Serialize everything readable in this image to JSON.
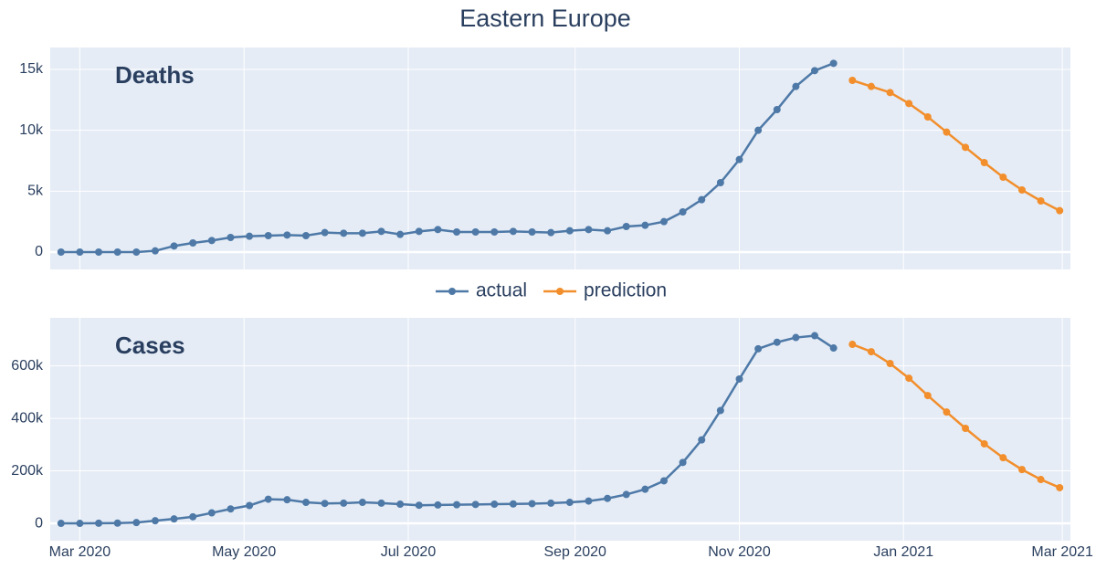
{
  "chart_data": [
    {
      "type": "line",
      "title": "Eastern Europe",
      "annotation": "Deaths",
      "ylim": [
        -1425,
        16800
      ],
      "yticks": [
        0,
        {
          "value": 5000,
          "label": "5k"
        },
        {
          "value": 10000,
          "label": "10k"
        },
        {
          "value": 15000,
          "label": "15k"
        }
      ],
      "grid": true,
      "legend": "between",
      "series": [
        {
          "name": "actual",
          "color": "#4e79a7",
          "x": [
            "2020-02-23",
            "2020-03-01",
            "2020-03-08",
            "2020-03-15",
            "2020-03-22",
            "2020-03-29",
            "2020-04-05",
            "2020-04-12",
            "2020-04-19",
            "2020-04-26",
            "2020-05-03",
            "2020-05-10",
            "2020-05-17",
            "2020-05-24",
            "2020-05-31",
            "2020-06-07",
            "2020-06-14",
            "2020-06-21",
            "2020-06-28",
            "2020-07-05",
            "2020-07-12",
            "2020-07-19",
            "2020-07-26",
            "2020-08-02",
            "2020-08-09",
            "2020-08-16",
            "2020-08-23",
            "2020-08-30",
            "2020-09-06",
            "2020-09-13",
            "2020-09-20",
            "2020-09-27",
            "2020-10-04",
            "2020-10-11",
            "2020-10-18",
            "2020-10-25",
            "2020-11-01",
            "2020-11-08",
            "2020-11-15",
            "2020-11-22",
            "2020-11-29",
            "2020-12-06"
          ],
          "values": [
            0,
            0,
            0,
            0,
            0,
            100,
            500,
            750,
            950,
            1200,
            1300,
            1350,
            1400,
            1350,
            1600,
            1550,
            1550,
            1700,
            1450,
            1700,
            1850,
            1650,
            1650,
            1650,
            1700,
            1650,
            1600,
            1750,
            1850,
            1750,
            2100,
            2200,
            2500,
            3300,
            4300,
            5700,
            7600,
            10000,
            11700,
            13600,
            14900,
            15500
          ]
        },
        {
          "name": "prediction",
          "color": "#f28e2b",
          "x": [
            "2020-12-13",
            "2020-12-20",
            "2020-12-27",
            "2021-01-03",
            "2021-01-10",
            "2021-01-17",
            "2021-01-24",
            "2021-01-31",
            "2021-02-07",
            "2021-02-14",
            "2021-02-21",
            "2021-02-28"
          ],
          "values": [
            14100,
            13600,
            13100,
            12200,
            11100,
            9850,
            8600,
            7350,
            6150,
            5100,
            4200,
            3400
          ]
        }
      ]
    },
    {
      "type": "line",
      "annotation": "Cases",
      "xlim": [
        "2020-02-19",
        "2021-03-04"
      ],
      "xticks": [
        {
          "value": "2020-03-01",
          "label": "Mar 2020"
        },
        {
          "value": "2020-05-01",
          "label": "May 2020"
        },
        {
          "value": "2020-07-01",
          "label": "Jul 2020"
        },
        {
          "value": "2020-09-01",
          "label": "Sep 2020"
        },
        {
          "value": "2020-11-01",
          "label": "Nov 2020"
        },
        {
          "value": "2021-01-01",
          "label": "Jan 2021"
        },
        {
          "value": "2021-03-01",
          "label": "Mar 2021"
        }
      ],
      "ylim": [
        -66000,
        783000
      ],
      "yticks": [
        0,
        {
          "value": 200000,
          "label": "200k"
        },
        {
          "value": 400000,
          "label": "400k"
        },
        {
          "value": 600000,
          "label": "600k"
        }
      ],
      "grid": true,
      "series": [
        {
          "color": "#4e79a7",
          "x": [
            "2020-02-23",
            "2020-03-01",
            "2020-03-08",
            "2020-03-15",
            "2020-03-22",
            "2020-03-29",
            "2020-04-05",
            "2020-04-12",
            "2020-04-19",
            "2020-04-26",
            "2020-05-03",
            "2020-05-10",
            "2020-05-17",
            "2020-05-24",
            "2020-05-31",
            "2020-06-07",
            "2020-06-14",
            "2020-06-21",
            "2020-06-28",
            "2020-07-05",
            "2020-07-12",
            "2020-07-19",
            "2020-07-26",
            "2020-08-02",
            "2020-08-09",
            "2020-08-16",
            "2020-08-23",
            "2020-08-30",
            "2020-09-06",
            "2020-09-13",
            "2020-09-20",
            "2020-09-27",
            "2020-10-04",
            "2020-10-11",
            "2020-10-18",
            "2020-10-25",
            "2020-11-01",
            "2020-11-08",
            "2020-11-15",
            "2020-11-22",
            "2020-11-29",
            "2020-12-06"
          ],
          "values": [
            0,
            0,
            500,
            1000,
            3000,
            10000,
            17000,
            25000,
            40000,
            55000,
            68000,
            92000,
            90000,
            80000,
            76000,
            77000,
            80000,
            77000,
            73000,
            69000,
            70000,
            71000,
            72000,
            73000,
            74000,
            75000,
            77000,
            80000,
            85000,
            95000,
            110000,
            130000,
            162000,
            232000,
            318000,
            430000,
            550000,
            665000,
            690000,
            708000,
            715000,
            668000
          ]
        },
        {
          "color": "#f28e2b",
          "x": [
            "2020-12-13",
            "2020-12-20",
            "2020-12-27",
            "2021-01-03",
            "2021-01-10",
            "2021-01-17",
            "2021-01-24",
            "2021-01-31",
            "2021-02-07",
            "2021-02-14",
            "2021-02-21",
            "2021-02-28"
          ],
          "values": [
            682000,
            654000,
            609000,
            553000,
            487000,
            424000,
            362000,
            303000,
            250000,
            205000,
            167000,
            136000
          ]
        }
      ]
    }
  ]
}
